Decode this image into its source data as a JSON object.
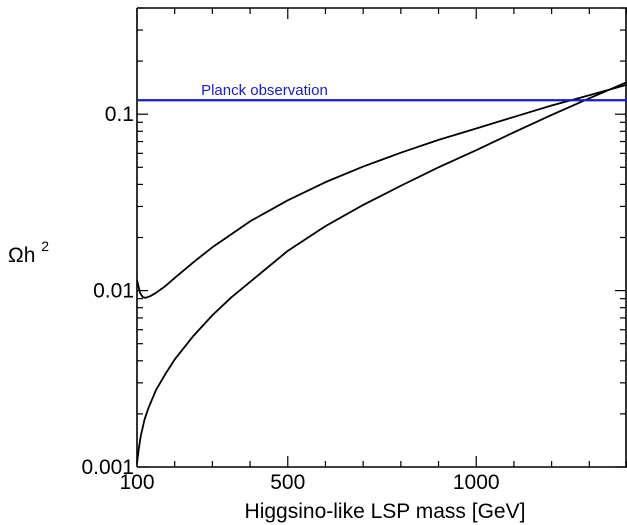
{
  "chart_data": {
    "type": "line",
    "xlabel": "Higgsino-like LSP mass  [GeV]",
    "ylabel_main": "Ωh",
    "ylabel_sup": "2",
    "xscale": "linear",
    "yscale": "log",
    "xlim": [
      100,
      1400
    ],
    "ylim": [
      0.001,
      0.4
    ],
    "grid": false,
    "x_tick_labels": [
      {
        "value": 100,
        "label": "100"
      },
      {
        "value": 500,
        "label": "500"
      },
      {
        "value": 1000,
        "label": "1000"
      }
    ],
    "y_tick_labels": [
      {
        "value": 0.001,
        "label": "0.001"
      },
      {
        "value": 0.01,
        "label": "0.01"
      },
      {
        "value": 0.1,
        "label": "0.1"
      }
    ],
    "hline": {
      "y": 0.12,
      "label": "Planck observation",
      "color": "#1a1acc"
    },
    "series": [
      {
        "color": "#000000",
        "x": [
          100,
          108,
          115,
          123,
          135,
          150,
          175,
          200,
          250,
          300,
          400,
          500,
          600,
          700,
          800,
          900,
          1000,
          1100,
          1200,
          1300,
          1400
        ],
        "y": [
          0.0115,
          0.0097,
          0.0092,
          0.0091,
          0.0093,
          0.0097,
          0.0106,
          0.0118,
          0.0145,
          0.0176,
          0.0247,
          0.0325,
          0.0412,
          0.0505,
          0.0605,
          0.0715,
          0.083,
          0.0965,
          0.112,
          0.128,
          0.147
        ]
      },
      {
        "color": "#000000",
        "x": [
          100,
          105,
          110,
          120,
          130,
          150,
          175,
          200,
          250,
          300,
          350,
          400,
          500,
          600,
          700,
          800,
          900,
          1000,
          1100,
          1200,
          1300,
          1400
        ],
        "y": [
          0.00105,
          0.00128,
          0.0015,
          0.00186,
          0.00215,
          0.00272,
          0.00336,
          0.00407,
          0.00555,
          0.00725,
          0.00915,
          0.0112,
          0.0168,
          0.0232,
          0.0306,
          0.0393,
          0.05,
          0.0625,
          0.079,
          0.099,
          0.123,
          0.152
        ]
      }
    ]
  }
}
